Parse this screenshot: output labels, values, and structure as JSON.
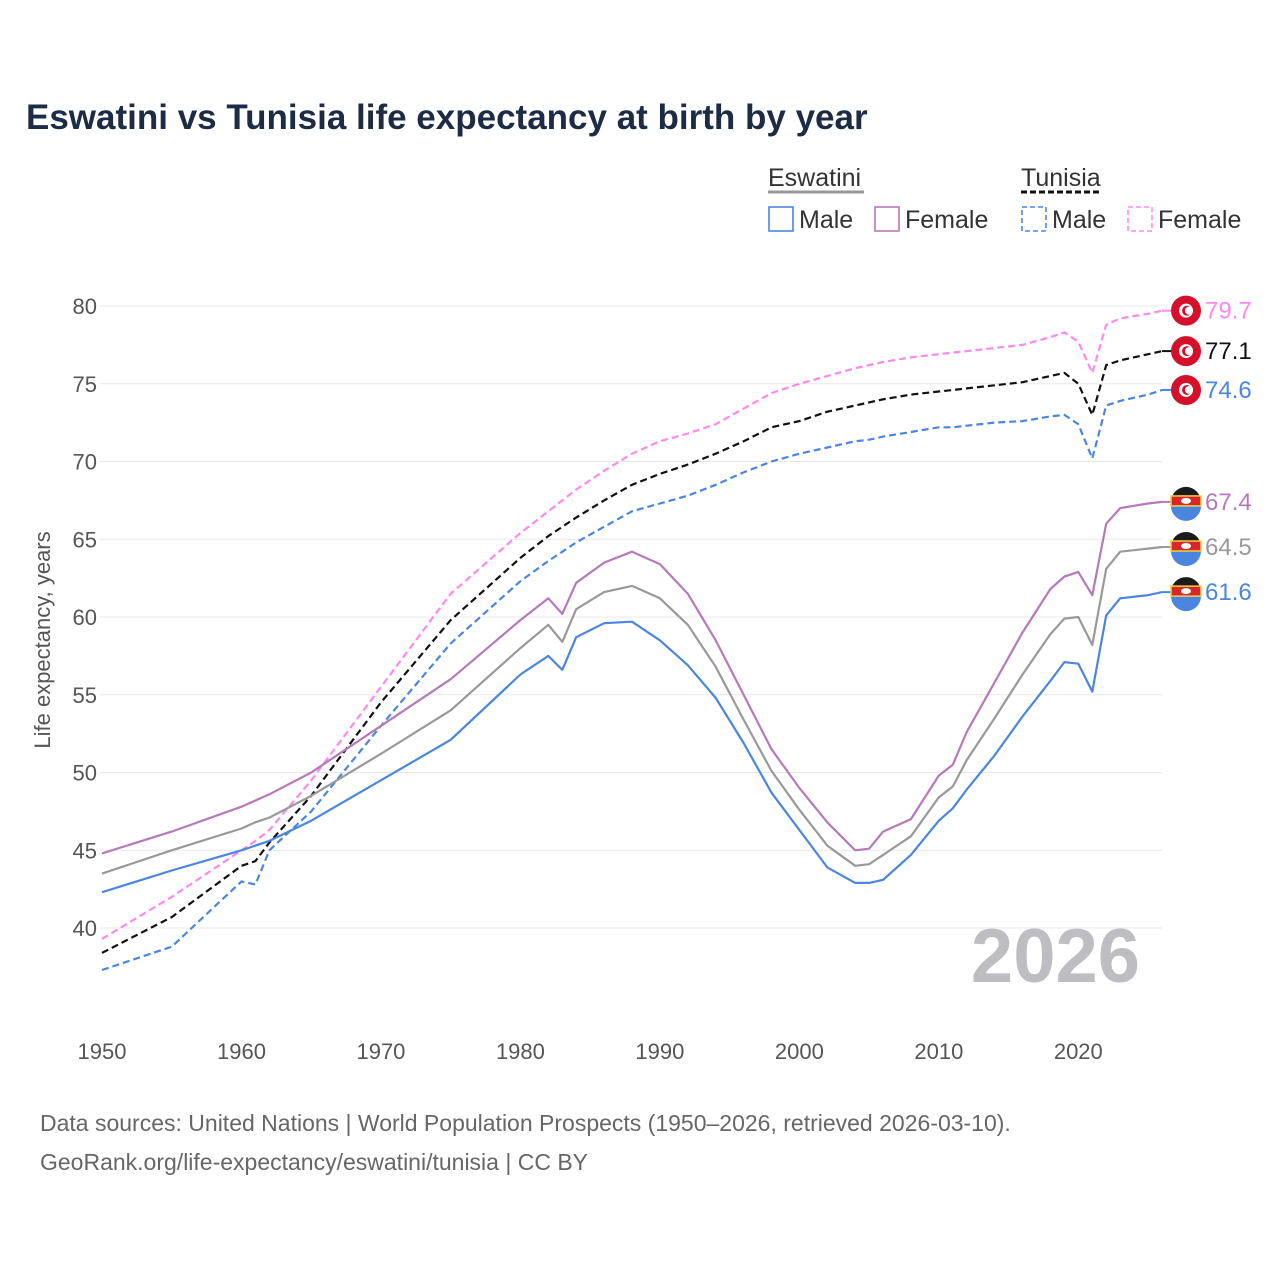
{
  "chart_data": {
    "type": "line",
    "title": "Eswatini vs Tunisia life expectancy at birth by year",
    "xlabel": "",
    "ylabel": "Life expectancy, years",
    "xlim": [
      1950,
      2026
    ],
    "ylim": [
      35,
      80
    ],
    "x_ticks": [
      "1950",
      "1960",
      "1970",
      "1980",
      "1990",
      "2000",
      "2010",
      "2020"
    ],
    "y_ticks": [
      "40",
      "45",
      "50",
      "55",
      "60",
      "65",
      "70",
      "75",
      "80"
    ],
    "grid": true,
    "current_year": "2026",
    "legend": {
      "groups": [
        {
          "name": "Eswatini",
          "color": "#999999",
          "style": "solid",
          "items": [
            {
              "label": "Male",
              "color": "#4a86e0"
            },
            {
              "label": "Female",
              "color": "#b57ab8"
            }
          ]
        },
        {
          "name": "Tunisia",
          "color": "#111111",
          "style": "dashed",
          "items": [
            {
              "label": "Male",
              "color": "#4a86e0"
            },
            {
              "label": "Female",
              "color": "#ff88ee"
            }
          ]
        }
      ],
      "placement": "top-right"
    },
    "x": [
      1950,
      1955,
      1960,
      1961,
      1962,
      1965,
      1970,
      1975,
      1980,
      1982,
      1983,
      1984,
      1986,
      1988,
      1990,
      1992,
      1994,
      1996,
      1998,
      2000,
      2002,
      2004,
      2005,
      2006,
      2008,
      2010,
      2011,
      2012,
      2014,
      2016,
      2018,
      2019,
      2020,
      2021,
      2022,
      2023,
      2025,
      2026
    ],
    "series": [
      {
        "name": "Tunisia Female",
        "country": "Tunisia",
        "color": "#ff88ee",
        "dashed": true,
        "end_label": "79.7",
        "values": [
          39.3,
          42.0,
          45.0,
          45.6,
          46.3,
          49.5,
          55.5,
          61.5,
          65.4,
          66.8,
          67.5,
          68.2,
          69.4,
          70.5,
          71.3,
          71.8,
          72.4,
          73.4,
          74.4,
          75.0,
          75.5,
          76.0,
          76.2,
          76.4,
          76.7,
          76.9,
          77.0,
          77.1,
          77.3,
          77.5,
          78.0,
          78.3,
          77.7,
          75.7,
          78.8,
          79.2,
          79.5,
          79.7
        ]
      },
      {
        "name": "Tunisia",
        "country": "Tunisia",
        "color": "#111111",
        "dashed": true,
        "end_label": "77.1",
        "values": [
          38.4,
          40.7,
          44.0,
          44.3,
          45.5,
          48.5,
          54.5,
          59.8,
          63.8,
          65.2,
          65.8,
          66.4,
          67.5,
          68.5,
          69.2,
          69.8,
          70.5,
          71.3,
          72.2,
          72.6,
          73.2,
          73.6,
          73.8,
          74.0,
          74.3,
          74.5,
          74.6,
          74.7,
          74.9,
          75.1,
          75.5,
          75.7,
          75.0,
          73.0,
          76.2,
          76.5,
          76.9,
          77.1
        ]
      },
      {
        "name": "Tunisia Male",
        "country": "Tunisia",
        "color": "#4a86e0",
        "dashed": true,
        "end_label": "74.6",
        "values": [
          37.3,
          38.8,
          43.0,
          42.8,
          45.0,
          47.5,
          53.0,
          58.3,
          62.3,
          63.6,
          64.2,
          64.8,
          65.8,
          66.8,
          67.3,
          67.8,
          68.5,
          69.3,
          70.0,
          70.5,
          70.9,
          71.3,
          71.4,
          71.6,
          71.9,
          72.2,
          72.2,
          72.3,
          72.5,
          72.6,
          72.9,
          73.0,
          72.4,
          70.2,
          73.6,
          73.9,
          74.3,
          74.6
        ]
      },
      {
        "name": "Eswatini Female",
        "country": "Eswatini",
        "color": "#b57ab8",
        "dashed": false,
        "end_label": "67.4",
        "values": [
          44.8,
          46.2,
          47.8,
          48.2,
          48.6,
          50.0,
          53.0,
          56.0,
          59.8,
          61.2,
          60.2,
          62.2,
          63.5,
          64.2,
          63.4,
          61.5,
          58.5,
          55.0,
          51.5,
          49.0,
          46.8,
          45.0,
          45.1,
          46.2,
          47.0,
          49.8,
          50.5,
          52.6,
          55.8,
          59.0,
          61.8,
          62.6,
          62.9,
          61.4,
          66.0,
          67.0,
          67.3,
          67.4
        ]
      },
      {
        "name": "Eswatini",
        "country": "Eswatini",
        "color": "#999999",
        "dashed": false,
        "end_label": "64.5",
        "values": [
          43.5,
          45.0,
          46.4,
          46.8,
          47.1,
          48.5,
          51.2,
          54.0,
          58.0,
          59.5,
          58.4,
          60.5,
          61.6,
          62.0,
          61.2,
          59.5,
          56.8,
          53.4,
          50.1,
          47.6,
          45.3,
          44.0,
          44.1,
          44.7,
          45.9,
          48.4,
          49.1,
          50.8,
          53.5,
          56.3,
          58.9,
          59.9,
          60.0,
          58.2,
          63.1,
          64.2,
          64.4,
          64.5
        ]
      },
      {
        "name": "Eswatini Male",
        "country": "Eswatini",
        "color": "#4a86e0",
        "dashed": false,
        "end_label": "61.6",
        "values": [
          42.3,
          43.7,
          45.0,
          45.3,
          45.6,
          46.9,
          49.5,
          52.1,
          56.3,
          57.5,
          56.6,
          58.7,
          59.6,
          59.7,
          58.5,
          56.9,
          54.8,
          51.9,
          48.7,
          46.3,
          43.9,
          42.9,
          42.9,
          43.1,
          44.7,
          46.9,
          47.7,
          48.9,
          51.1,
          53.6,
          55.9,
          57.1,
          57.0,
          55.2,
          60.1,
          61.2,
          61.4,
          61.6
        ]
      }
    ]
  },
  "footer": {
    "line1": "Data sources: United Nations | World Population Prospects (1950–2026, retrieved 2026-03-10).",
    "line2": "GeoRank.org/life-expectancy/eswatini/tunisia | CC BY"
  }
}
